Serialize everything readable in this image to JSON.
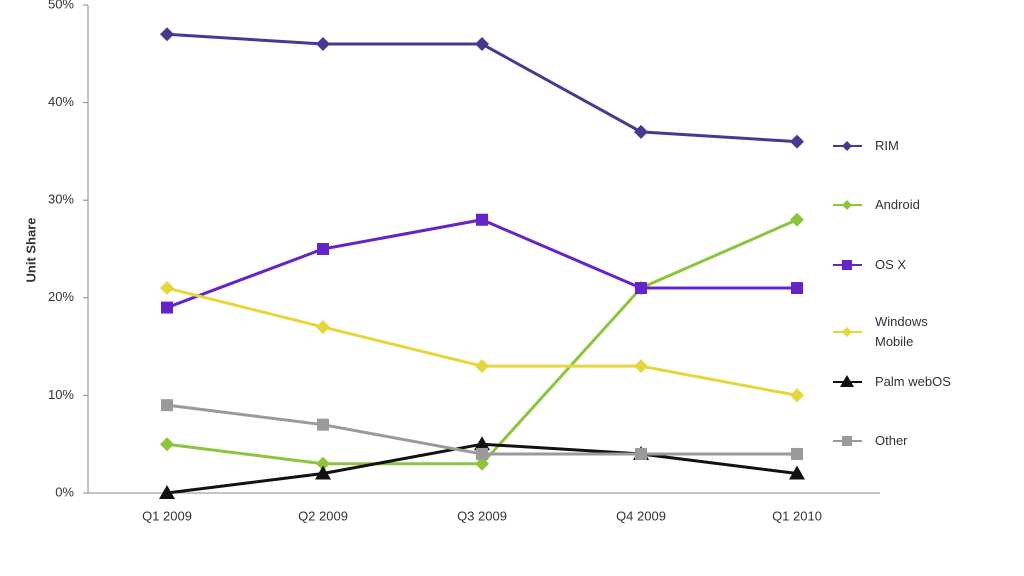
{
  "chart_data": {
    "type": "line",
    "y_label": "Unit Share",
    "categories": [
      "Q1 2009",
      "Q2 2009",
      "Q3 2009",
      "Q4 2009",
      "Q1 2010"
    ],
    "ylim": [
      0,
      50
    ],
    "yticks": [
      {
        "value": 0,
        "label": "0%"
      },
      {
        "value": 10,
        "label": "10%"
      },
      {
        "value": 20,
        "label": "20%"
      },
      {
        "value": 30,
        "label": "30%"
      },
      {
        "value": 40,
        "label": "40%"
      },
      {
        "value": 50,
        "label": "50%"
      }
    ],
    "series": [
      {
        "name": "RIM",
        "color": "#463a8f",
        "marker": "diamond",
        "values": [
          47,
          46,
          46,
          37,
          36
        ]
      },
      {
        "name": "Android",
        "color": "#8cc43c",
        "marker": "diamond",
        "values": [
          5,
          3,
          3,
          21,
          28
        ]
      },
      {
        "name": "OS X",
        "color": "#6424c8",
        "marker": "square",
        "values": [
          19,
          25,
          28,
          21,
          21
        ]
      },
      {
        "name": "Windows Mobile",
        "color": "#e6d63c",
        "marker": "diamond",
        "values": [
          21,
          17,
          13,
          13,
          10
        ]
      },
      {
        "name": "Palm webOS",
        "color": "#111111",
        "marker": "triangle",
        "values": [
          0,
          2,
          5,
          4,
          2
        ]
      },
      {
        "name": "Other",
        "color": "#9a9a9a",
        "marker": "square",
        "values": [
          9,
          7,
          4,
          4,
          4
        ]
      }
    ]
  }
}
